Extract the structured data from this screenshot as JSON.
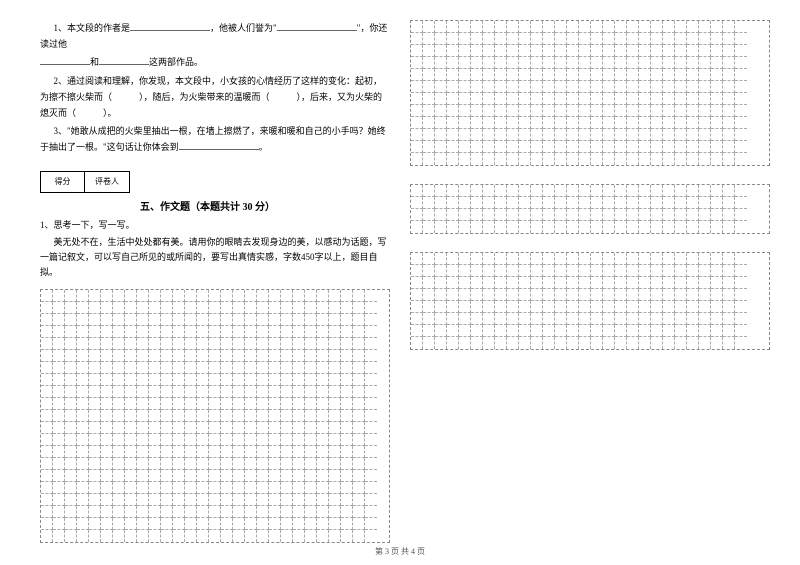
{
  "questions": {
    "q1_prefix": "1、本文段的作者是",
    "q1_mid": "，他被人们誉为\"",
    "q1_end": "\"，你还读过他",
    "q1_line2_mid": "和",
    "q1_line2_end": "这两部作品。",
    "q2": "2、通过阅读和理解，你发现，本文段中，小女孩的心情经历了这样的变化：起初，为擦不擦火柴而（　　　），随后，为火柴带来的温暖而（　　　），后来，又为火柴的熄灭而（　　　）。",
    "q3": "3、\"她敢从成把的火柴里抽出一根，在墙上擦燃了，来暖和暖和自己的小手吗？她终于抽出了一根。\"这句话让你体会到",
    "q3_end": "。"
  },
  "scorebox": {
    "left": "得分",
    "right": "评卷人"
  },
  "section_title": "五、作文题（本题共计 30 分）",
  "essay": {
    "line1": "1、思考一下，写一写。",
    "line2": "美无处不在，生活中处处都有美。请用你的眼睛去发现身边的美，以感动为话题，写一篇记叙文，可以写自己所见的或所闻的，要写出真情实感，字数450字以上，题目自拟。"
  },
  "footer": "第 3 页 共 4 页",
  "grid": {
    "left_cols": 28,
    "left_rows": 21,
    "right_top_cols": 28,
    "right_top_rows": 12,
    "right_mid_cols": 28,
    "right_mid_rows": 4,
    "right_bottom_cols": 28,
    "right_bottom_rows": 8
  },
  "colors": {
    "text": "#000000",
    "bg": "#ffffff",
    "grid_border": "#aaaaaa"
  }
}
